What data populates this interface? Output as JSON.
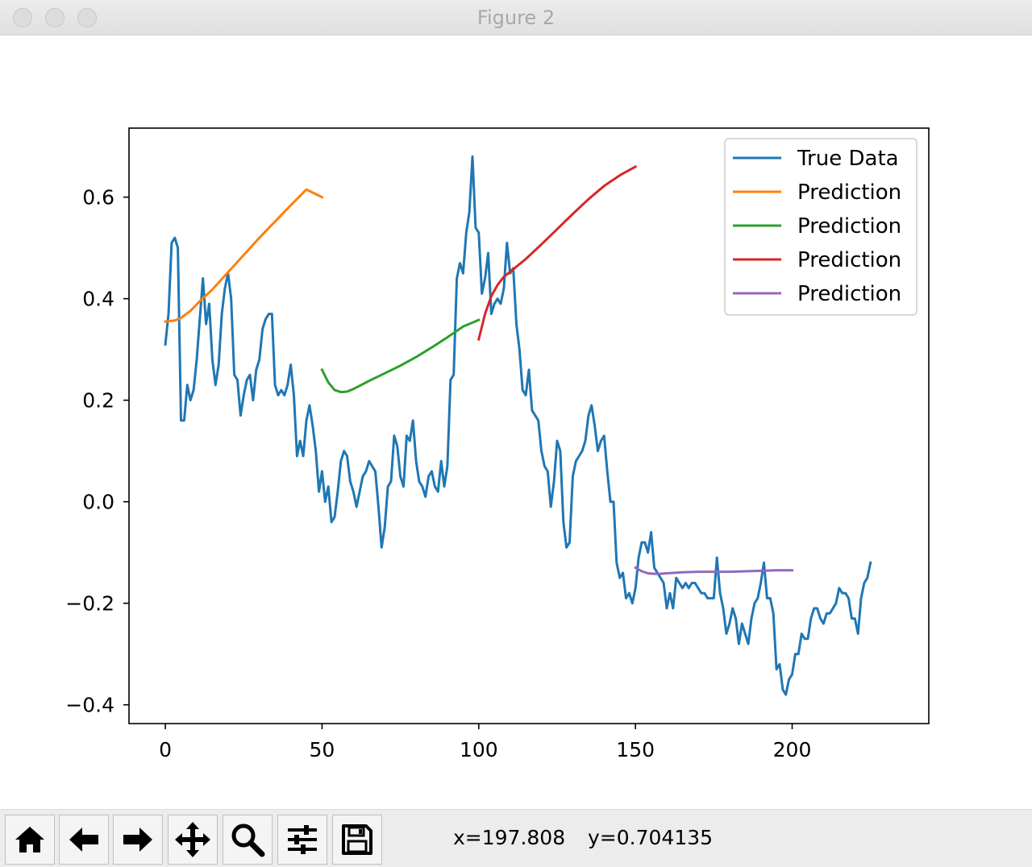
{
  "window": {
    "title": "Figure 2"
  },
  "toolbar": {
    "buttons": [
      {
        "name": "home",
        "icon": "home-icon"
      },
      {
        "name": "back",
        "icon": "arrow-left-icon"
      },
      {
        "name": "forward",
        "icon": "arrow-right-icon"
      },
      {
        "name": "pan",
        "icon": "move-icon"
      },
      {
        "name": "zoom",
        "icon": "magnifier-icon"
      },
      {
        "name": "configure",
        "icon": "sliders-icon"
      },
      {
        "name": "save",
        "icon": "floppy-disk-icon"
      }
    ],
    "x_readout": "x=197.808",
    "y_readout": "y=0.704135"
  },
  "chart_data": {
    "type": "line",
    "title": "",
    "xlabel": "",
    "ylabel": "",
    "xlim": [
      -11.6,
      243.6
    ],
    "ylim": [
      -0.437,
      0.736
    ],
    "xticks": [
      0,
      50,
      100,
      150,
      200
    ],
    "yticks": [
      -0.4,
      -0.2,
      0.0,
      0.2,
      0.4,
      0.6
    ],
    "ytick_labels": [
      "−0.4",
      "−0.2",
      "0.0",
      "0.2",
      "0.4",
      "0.6"
    ],
    "xtick_labels": [
      "0",
      "50",
      "100",
      "150",
      "200"
    ],
    "grid": false,
    "legend_position": "top-right",
    "series": [
      {
        "name": "True Data",
        "color": "#1f77b4",
        "x_start": 0,
        "values": [
          0.31,
          0.37,
          0.51,
          0.52,
          0.5,
          0.16,
          0.16,
          0.23,
          0.2,
          0.22,
          0.28,
          0.36,
          0.44,
          0.35,
          0.39,
          0.28,
          0.23,
          0.27,
          0.37,
          0.42,
          0.45,
          0.4,
          0.25,
          0.24,
          0.17,
          0.21,
          0.24,
          0.25,
          0.2,
          0.26,
          0.28,
          0.34,
          0.36,
          0.37,
          0.37,
          0.23,
          0.21,
          0.22,
          0.21,
          0.23,
          0.27,
          0.21,
          0.09,
          0.12,
          0.09,
          0.16,
          0.19,
          0.15,
          0.1,
          0.02,
          0.06,
          0.0,
          0.03,
          -0.04,
          -0.03,
          0.02,
          0.08,
          0.1,
          0.09,
          0.04,
          0.02,
          -0.01,
          0.02,
          0.05,
          0.06,
          0.08,
          0.07,
          0.06,
          -0.01,
          -0.09,
          -0.05,
          0.03,
          0.04,
          0.13,
          0.11,
          0.05,
          0.03,
          0.13,
          0.12,
          0.16,
          0.08,
          0.04,
          0.03,
          0.01,
          0.05,
          0.06,
          0.03,
          0.02,
          0.08,
          0.03,
          0.07,
          0.24,
          0.25,
          0.44,
          0.47,
          0.45,
          0.53,
          0.57,
          0.68,
          0.54,
          0.53,
          0.41,
          0.44,
          0.49,
          0.37,
          0.39,
          0.4,
          0.39,
          0.42,
          0.51,
          0.45,
          0.46,
          0.35,
          0.3,
          0.22,
          0.21,
          0.26,
          0.18,
          0.17,
          0.16,
          0.1,
          0.07,
          0.06,
          -0.01,
          0.04,
          0.12,
          0.1,
          -0.04,
          -0.09,
          -0.08,
          0.05,
          0.08,
          0.09,
          0.1,
          0.12,
          0.17,
          0.19,
          0.15,
          0.1,
          0.12,
          0.13,
          0.06,
          0.0,
          0.0,
          -0.12,
          -0.15,
          -0.14,
          -0.19,
          -0.18,
          -0.2,
          -0.17,
          -0.11,
          -0.08,
          -0.08,
          -0.1,
          -0.06,
          -0.13,
          -0.14,
          -0.15,
          -0.16,
          -0.21,
          -0.18,
          -0.21,
          -0.15,
          -0.16,
          -0.17,
          -0.16,
          -0.17,
          -0.16,
          -0.16,
          -0.17,
          -0.18,
          -0.18,
          -0.19,
          -0.19,
          -0.19,
          -0.11,
          -0.18,
          -0.21,
          -0.26,
          -0.24,
          -0.21,
          -0.23,
          -0.28,
          -0.24,
          -0.26,
          -0.28,
          -0.23,
          -0.2,
          -0.19,
          -0.16,
          -0.12,
          -0.19,
          -0.19,
          -0.22,
          -0.33,
          -0.32,
          -0.37,
          -0.38,
          -0.35,
          -0.34,
          -0.3,
          -0.3,
          -0.26,
          -0.27,
          -0.27,
          -0.23,
          -0.21,
          -0.21,
          -0.23,
          -0.24,
          -0.22,
          -0.22,
          -0.21,
          -0.2,
          -0.17,
          -0.18,
          -0.18,
          -0.19,
          -0.23,
          -0.23,
          -0.26,
          -0.19,
          -0.16,
          -0.15,
          -0.12
        ]
      },
      {
        "name": "Prediction",
        "color": "#ff7f0e",
        "x": [
          0,
          3,
          5,
          8,
          11,
          15,
          20,
          25,
          30,
          35,
          40,
          45,
          50
        ],
        "values": [
          0.355,
          0.357,
          0.362,
          0.376,
          0.395,
          0.418,
          0.452,
          0.486,
          0.52,
          0.552,
          0.584,
          0.615,
          0.6
        ]
      },
      {
        "name": "Prediction",
        "color": "#2ca02c",
        "x": [
          50,
          52,
          54,
          56,
          58,
          60,
          65,
          70,
          75,
          80,
          85,
          90,
          95,
          100
        ],
        "values": [
          0.26,
          0.235,
          0.22,
          0.216,
          0.217,
          0.222,
          0.238,
          0.253,
          0.268,
          0.285,
          0.304,
          0.324,
          0.345,
          0.358
        ]
      },
      {
        "name": "Prediction",
        "color": "#d62728",
        "x": [
          100,
          102,
          104,
          106,
          108,
          110,
          115,
          120,
          125,
          130,
          135,
          140,
          145,
          150
        ],
        "values": [
          0.32,
          0.37,
          0.405,
          0.427,
          0.443,
          0.453,
          0.478,
          0.507,
          0.537,
          0.567,
          0.596,
          0.622,
          0.643,
          0.66
        ]
      },
      {
        "name": "Prediction",
        "color": "#9467bd",
        "x": [
          150,
          152,
          154,
          156,
          158,
          160,
          165,
          170,
          175,
          180,
          185,
          190,
          195,
          200
        ],
        "values": [
          -0.13,
          -0.137,
          -0.141,
          -0.142,
          -0.142,
          -0.141,
          -0.139,
          -0.138,
          -0.138,
          -0.138,
          -0.137,
          -0.136,
          -0.135,
          -0.135
        ]
      }
    ]
  }
}
